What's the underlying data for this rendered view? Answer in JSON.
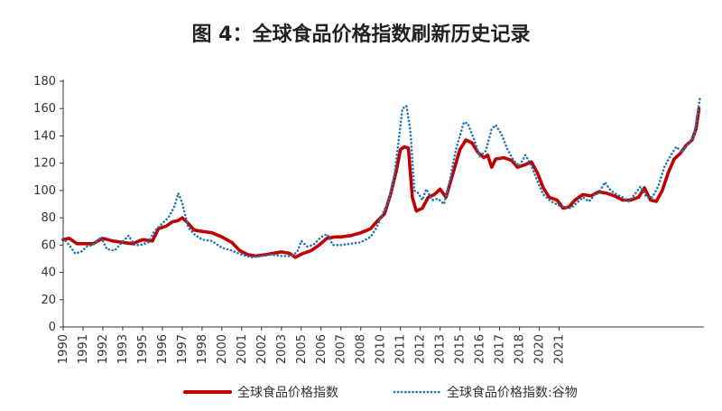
{
  "page": {
    "title": "图 4：全球食品价格指数刷新历史记录"
  },
  "chart_data": {
    "type": "line",
    "title": "图 4：全球食品价格指数刷新历史记录",
    "xlabel": "",
    "ylabel": "",
    "ylim": [
      0,
      180
    ],
    "xlim": [
      1990,
      2022.3
    ],
    "y_ticks": [
      0,
      20,
      40,
      60,
      80,
      100,
      120,
      140,
      160,
      180
    ],
    "x_ticks": [
      {
        "label": "1990",
        "x": 1990
      },
      {
        "label": "1991",
        "x": 1991
      },
      {
        "label": "1992",
        "x": 1992
      },
      {
        "label": "1993",
        "x": 1993
      },
      {
        "label": "1995",
        "x": 1994
      },
      {
        "label": "1996",
        "x": 1995
      },
      {
        "label": "1997",
        "x": 1996
      },
      {
        "label": "1998",
        "x": 1997
      },
      {
        "label": "2000",
        "x": 1998
      },
      {
        "label": "2001",
        "x": 1999
      },
      {
        "label": "2002",
        "x": 2000
      },
      {
        "label": "2003",
        "x": 2001
      },
      {
        "label": "2005",
        "x": 2002
      },
      {
        "label": "2006",
        "x": 2003
      },
      {
        "label": "2007",
        "x": 2004
      },
      {
        "label": "2008",
        "x": 2005
      },
      {
        "label": "2010",
        "x": 2006
      },
      {
        "label": "2011",
        "x": 2007
      },
      {
        "label": "2012",
        "x": 2008
      },
      {
        "label": "2013",
        "x": 2009
      },
      {
        "label": "2015",
        "x": 2010
      },
      {
        "label": "2016",
        "x": 2011
      },
      {
        "label": "2017",
        "x": 2012
      },
      {
        "label": "2018",
        "x": 2013
      },
      {
        "label": "2020",
        "x": 2014
      },
      {
        "label": "2021",
        "x": 2015
      }
    ],
    "grid": false,
    "legend_position": "bottom",
    "series": [
      {
        "name": "全球食品价格指数",
        "color": "#c00000",
        "style": "solid",
        "points": [
          [
            1990.0,
            64
          ],
          [
            1990.3,
            65
          ],
          [
            1990.7,
            61
          ],
          [
            1991.0,
            61
          ],
          [
            1991.5,
            61
          ],
          [
            1992.0,
            65
          ],
          [
            1992.5,
            63
          ],
          [
            1993.0,
            62
          ],
          [
            1993.5,
            61
          ],
          [
            1994.0,
            64
          ],
          [
            1994.5,
            63
          ],
          [
            1994.8,
            72
          ],
          [
            1995.2,
            74
          ],
          [
            1995.5,
            77
          ],
          [
            1995.8,
            78
          ],
          [
            1996.0,
            80
          ],
          [
            1996.3,
            76
          ],
          [
            1996.6,
            71
          ],
          [
            1997.0,
            70
          ],
          [
            1997.5,
            69
          ],
          [
            1998.0,
            66
          ],
          [
            1998.5,
            62
          ],
          [
            1998.9,
            56
          ],
          [
            1999.3,
            53
          ],
          [
            1999.7,
            52
          ],
          [
            2000.2,
            53
          ],
          [
            2000.6,
            54
          ],
          [
            2001.0,
            55
          ],
          [
            2001.4,
            54
          ],
          [
            2001.7,
            51
          ],
          [
            2002.1,
            54
          ],
          [
            2002.5,
            56
          ],
          [
            2002.9,
            60
          ],
          [
            2003.3,
            65
          ],
          [
            2003.7,
            66
          ],
          [
            2004.0,
            66
          ],
          [
            2004.5,
            67
          ],
          [
            2005.0,
            69
          ],
          [
            2005.5,
            72
          ],
          [
            2005.8,
            77
          ],
          [
            2006.2,
            83
          ],
          [
            2006.5,
            97
          ],
          [
            2006.8,
            115
          ],
          [
            2007.0,
            130
          ],
          [
            2007.2,
            132
          ],
          [
            2007.4,
            131
          ],
          [
            2007.6,
            95
          ],
          [
            2007.8,
            85
          ],
          [
            2008.1,
            87
          ],
          [
            2008.4,
            95
          ],
          [
            2008.7,
            97
          ],
          [
            2009.0,
            101
          ],
          [
            2009.3,
            95
          ],
          [
            2009.7,
            115
          ],
          [
            2010.0,
            130
          ],
          [
            2010.3,
            137
          ],
          [
            2010.6,
            135
          ],
          [
            2010.9,
            128
          ],
          [
            2011.2,
            124
          ],
          [
            2011.4,
            126
          ],
          [
            2011.6,
            117
          ],
          [
            2011.8,
            123
          ],
          [
            2012.2,
            124
          ],
          [
            2012.6,
            122
          ],
          [
            2012.9,
            117
          ],
          [
            2013.3,
            119
          ],
          [
            2013.6,
            121
          ],
          [
            2013.9,
            113
          ],
          [
            2014.2,
            102
          ],
          [
            2014.5,
            95
          ],
          [
            2014.9,
            93
          ],
          [
            2015.2,
            87
          ],
          [
            2015.5,
            88
          ],
          [
            2015.8,
            93
          ],
          [
            2016.2,
            97
          ],
          [
            2016.6,
            96
          ],
          [
            2017.0,
            99
          ],
          [
            2017.4,
            98
          ],
          [
            2017.8,
            96
          ],
          [
            2018.2,
            93
          ],
          [
            2018.6,
            93
          ],
          [
            2019.0,
            95
          ],
          [
            2019.3,
            102
          ],
          [
            2019.6,
            93
          ],
          [
            2019.9,
            92
          ],
          [
            2020.2,
            100
          ],
          [
            2020.5,
            113
          ],
          [
            2020.8,
            123
          ],
          [
            2021.1,
            127
          ],
          [
            2021.4,
            133
          ],
          [
            2021.7,
            137
          ],
          [
            2021.9,
            145
          ],
          [
            2022.05,
            160
          ]
        ]
      },
      {
        "name": "全球食品价格指数:谷物",
        "color": "#1f77b4",
        "style": "dotted",
        "points": [
          [
            1990.0,
            65
          ],
          [
            1990.3,
            60
          ],
          [
            1990.6,
            54
          ],
          [
            1990.9,
            55
          ],
          [
            1991.2,
            59
          ],
          [
            1991.5,
            60
          ],
          [
            1991.9,
            66
          ],
          [
            1992.2,
            57
          ],
          [
            1992.6,
            56
          ],
          [
            1992.9,
            61
          ],
          [
            1993.3,
            67
          ],
          [
            1993.6,
            60
          ],
          [
            1993.9,
            60
          ],
          [
            1994.3,
            62
          ],
          [
            1994.6,
            70
          ],
          [
            1995.0,
            76
          ],
          [
            1995.3,
            80
          ],
          [
            1995.6,
            88
          ],
          [
            1995.8,
            98
          ],
          [
            1996.0,
            91
          ],
          [
            1996.3,
            73
          ],
          [
            1996.6,
            68
          ],
          [
            1997.0,
            64
          ],
          [
            1997.5,
            63
          ],
          [
            1998.0,
            58
          ],
          [
            1998.5,
            56
          ],
          [
            1999.0,
            53
          ],
          [
            1999.5,
            51
          ],
          [
            2000.0,
            52
          ],
          [
            2000.5,
            53
          ],
          [
            2001.0,
            52
          ],
          [
            2001.5,
            52
          ],
          [
            2001.8,
            55
          ],
          [
            2002.0,
            63
          ],
          [
            2002.3,
            59
          ],
          [
            2002.6,
            60
          ],
          [
            2003.0,
            66
          ],
          [
            2003.3,
            68
          ],
          [
            2003.6,
            60
          ],
          [
            2004.0,
            60
          ],
          [
            2004.5,
            61
          ],
          [
            2005.0,
            62
          ],
          [
            2005.5,
            66
          ],
          [
            2005.8,
            73
          ],
          [
            2006.1,
            83
          ],
          [
            2006.4,
            92
          ],
          [
            2006.7,
            112
          ],
          [
            2006.9,
            135
          ],
          [
            2007.1,
            160
          ],
          [
            2007.3,
            162
          ],
          [
            2007.5,
            144
          ],
          [
            2007.7,
            100
          ],
          [
            2007.9,
            98
          ],
          [
            2008.1,
            93
          ],
          [
            2008.3,
            101
          ],
          [
            2008.6,
            93
          ],
          [
            2008.9,
            94
          ],
          [
            2009.2,
            90
          ],
          [
            2009.5,
            108
          ],
          [
            2009.8,
            130
          ],
          [
            2010.0,
            140
          ],
          [
            2010.2,
            150
          ],
          [
            2010.4,
            149
          ],
          [
            2010.7,
            138
          ],
          [
            2011.0,
            125
          ],
          [
            2011.3,
            129
          ],
          [
            2011.6,
            145
          ],
          [
            2011.8,
            148
          ],
          [
            2012.1,
            141
          ],
          [
            2012.4,
            130
          ],
          [
            2012.7,
            122
          ],
          [
            2013.0,
            118
          ],
          [
            2013.3,
            126
          ],
          [
            2013.6,
            118
          ],
          [
            2013.9,
            107
          ],
          [
            2014.2,
            97
          ],
          [
            2014.6,
            92
          ],
          [
            2015.0,
            89
          ],
          [
            2015.3,
            88
          ],
          [
            2015.6,
            87
          ],
          [
            2015.9,
            91
          ],
          [
            2016.2,
            95
          ],
          [
            2016.5,
            92
          ],
          [
            2016.8,
            97
          ],
          [
            2017.0,
            98
          ],
          [
            2017.3,
            106
          ],
          [
            2017.6,
            100
          ],
          [
            2017.9,
            97
          ],
          [
            2018.2,
            95
          ],
          [
            2018.5,
            92
          ],
          [
            2018.8,
            97
          ],
          [
            2019.1,
            103
          ],
          [
            2019.4,
            95
          ],
          [
            2019.7,
            95
          ],
          [
            2020.0,
            103
          ],
          [
            2020.3,
            117
          ],
          [
            2020.6,
            125
          ],
          [
            2020.9,
            132
          ],
          [
            2021.2,
            128
          ],
          [
            2021.5,
            134
          ],
          [
            2021.8,
            140
          ],
          [
            2022.1,
            168
          ]
        ]
      }
    ]
  }
}
